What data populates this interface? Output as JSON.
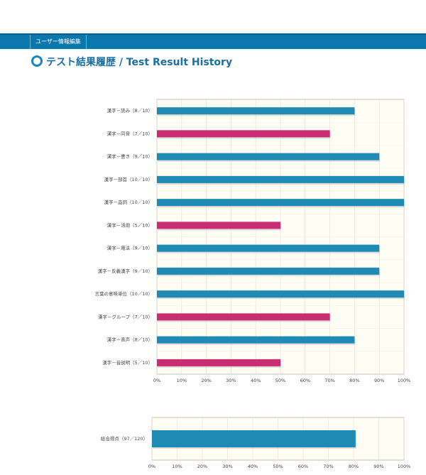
{
  "header": {
    "tab": "ユーザー情報編集",
    "title": "テスト結果履歴 / Test Result History"
  },
  "chart_data": [
    {
      "type": "barh",
      "categories": [
        "漢字－読み（8／10）",
        "漢字－同音（7／10）",
        "漢字－書き（9／10）",
        "漢字－部首（10／10）",
        "漢字－品詞（10／10）",
        "漢字－活用（5／10）",
        "漢字－用法（9／10）",
        "漢字－反義漢字（9／10）",
        "言葉の意味単位（10／10）",
        "漢字－グループ（7／10）",
        "漢字－音声（8／10）",
        "漢字－音説明（5／10）"
      ],
      "values": [
        80,
        70,
        90,
        100,
        100,
        50,
        90,
        90,
        100,
        70,
        80,
        50
      ],
      "colors": [
        "#1f8bb5",
        "#c92c72",
        "#1f8bb5",
        "#1f8bb5",
        "#1f8bb5",
        "#c92c72",
        "#1f8bb5",
        "#1f8bb5",
        "#1f8bb5",
        "#c92c72",
        "#1f8bb5",
        "#c92c72"
      ],
      "xlim": [
        0,
        100
      ],
      "xticks": [
        {
          "value": 0,
          "label": "0%"
        },
        {
          "value": 10,
          "label": "10%"
        },
        {
          "value": 20,
          "label": "20%"
        },
        {
          "value": 30,
          "label": "30%"
        },
        {
          "value": 40,
          "label": "40%"
        },
        {
          "value": 50,
          "label": "50%"
        },
        {
          "value": 60,
          "label": "60%"
        },
        {
          "value": 70,
          "label": "70%"
        },
        {
          "value": 80,
          "label": "80%"
        },
        {
          "value": 90,
          "label": "90%"
        },
        {
          "value": 100,
          "label": "100%"
        }
      ],
      "grid": true
    },
    {
      "type": "barh",
      "categories": [
        "総合得点（97／120）"
      ],
      "values": [
        80.8
      ],
      "colors": [
        "#1f8bb5"
      ],
      "xlim": [
        0,
        100
      ],
      "xticks": [
        {
          "value": 0,
          "label": "0%"
        },
        {
          "value": 10,
          "label": "10%"
        },
        {
          "value": 20,
          "label": "20%"
        },
        {
          "value": 30,
          "label": "30%"
        },
        {
          "value": 40,
          "label": "40%"
        },
        {
          "value": 50,
          "label": "50%"
        },
        {
          "value": 60,
          "label": "60%"
        },
        {
          "value": 70,
          "label": "70%"
        },
        {
          "value": 80,
          "label": "80%"
        },
        {
          "value": 90,
          "label": "90%"
        },
        {
          "value": 100,
          "label": "100%"
        }
      ],
      "grid": true
    }
  ]
}
